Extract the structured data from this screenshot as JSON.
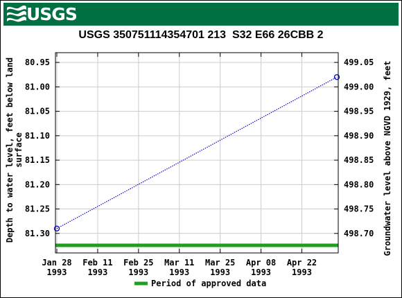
{
  "header": {
    "agency": "USGS",
    "logo_icon": "usgs-wave-icon",
    "banner_color": "#006f41"
  },
  "chart_data": {
    "type": "line",
    "title": "USGS 350751114354701 213  S32 E66 26CBB 2",
    "ylabel_left": "Depth to water level, feet below land surface",
    "ylabel_left_lines": [
      "Depth to water level, feet below land",
      "surface"
    ],
    "ylabel_right": "Groundwater level above NGVD 1929, feet",
    "left_axis": {
      "ylim": [
        80.93,
        81.34
      ],
      "inverted": true,
      "ticks": [
        80.95,
        81.0,
        81.05,
        81.1,
        81.15,
        81.2,
        81.25,
        81.3
      ],
      "tick_labels": [
        "80.95",
        "81.00",
        "81.05",
        "81.10",
        "81.15",
        "81.20",
        "81.25",
        "81.30"
      ]
    },
    "right_axis": {
      "ticks": [
        499.05,
        499.0,
        498.95,
        498.9,
        498.85,
        498.8,
        498.75,
        498.7
      ],
      "tick_labels": [
        "499.05",
        "499.00",
        "498.95",
        "498.90",
        "498.85",
        "498.80",
        "498.75",
        "498.70"
      ]
    },
    "x_axis": {
      "xlim": [
        "1993-01-28",
        "1993-05-04"
      ],
      "ticks": [
        "1993-01-28",
        "1993-02-11",
        "1993-02-25",
        "1993-03-11",
        "1993-03-25",
        "1993-04-08",
        "1993-04-22"
      ],
      "tick_labels": [
        [
          "Jan 28",
          "1993"
        ],
        [
          "Feb 11",
          "1993"
        ],
        [
          "Feb 25",
          "1993"
        ],
        [
          "Mar 11",
          "1993"
        ],
        [
          "Mar 25",
          "1993"
        ],
        [
          "Apr 08",
          "1993"
        ],
        [
          "Apr 22",
          "1993"
        ]
      ]
    },
    "grid": true,
    "series": [
      {
        "color": "#0000cc",
        "line_style": "dotted",
        "marker": "open-circle",
        "points": [
          {
            "date": "1993-01-28",
            "depth": 81.29
          },
          {
            "date": "1993-05-04",
            "depth": 80.98
          }
        ]
      }
    ],
    "approved_period": {
      "label": "Period of approved data",
      "color": "#1f9e1f",
      "start": "1993-01-28",
      "end": "1993-05-04"
    },
    "legend": {
      "placement": "bottom-center",
      "entries": [
        "Period of approved data"
      ]
    }
  }
}
